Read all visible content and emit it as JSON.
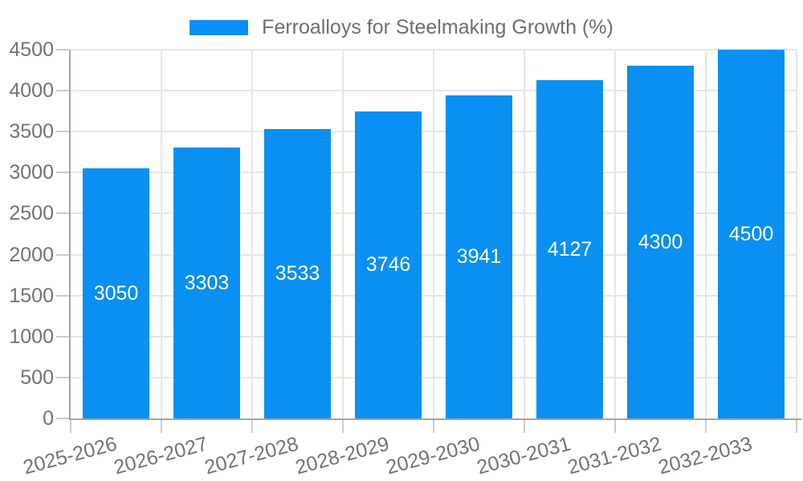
{
  "legend": {
    "label": "Ferroalloys for Steelmaking Growth (%)"
  },
  "colors": {
    "bar": "#0A8FF2",
    "bar_value_text": "#FFFFFF",
    "axis_line": "#A3A3A3",
    "gridline": "#E6E6E6",
    "tick": "#CBCBCB",
    "axis_text": "#737373",
    "legend_text": "#6E6E6E",
    "background": "#FFFFFF"
  },
  "chart_data": {
    "type": "bar",
    "title": "Ferroalloys for Steelmaking Growth (%)",
    "categories": [
      "2025-2026",
      "2026-2027",
      "2027-2028",
      "2028-2029",
      "2029-2030",
      "2030-2031",
      "2031-2032",
      "2032-2033"
    ],
    "values": [
      3050,
      3303,
      3533,
      3746,
      3941,
      4127,
      4300,
      4500
    ],
    "series_name": "Ferroalloys for Steelmaking Growth (%)",
    "xlabel": "",
    "ylabel": "",
    "ylim": [
      0,
      4500
    ],
    "ytick_step": 500,
    "yticks": [
      0,
      500,
      1000,
      1500,
      2000,
      2500,
      3000,
      3500,
      4000,
      4500
    ],
    "grid": true,
    "legend_position": "top-center",
    "value_labels": "inside-center",
    "x_label_rotation_deg": -15
  }
}
